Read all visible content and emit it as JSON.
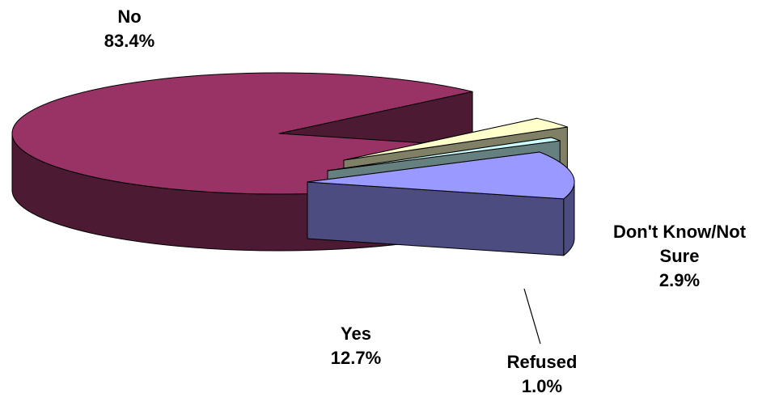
{
  "chart_data": {
    "type": "pie",
    "title": "",
    "slices": [
      {
        "label": "No",
        "value": 83.4,
        "value_label": "83.4%",
        "color": "#993366",
        "side_color": "#4d1a33"
      },
      {
        "label": "Don't Know/Not Sure",
        "value": 2.9,
        "value_label": "2.9%",
        "color": "#ffffcc",
        "side_color": "#808066"
      },
      {
        "label": "Refused",
        "value": 1.0,
        "value_label": "1.0%",
        "color": "#ccffff",
        "side_color": "#668080"
      },
      {
        "label": "Yes",
        "value": 12.7,
        "value_label": "12.7%",
        "color": "#9999ff",
        "side_color": "#4c4c80"
      }
    ],
    "legend": "none",
    "exploded": true,
    "three_d": true
  }
}
